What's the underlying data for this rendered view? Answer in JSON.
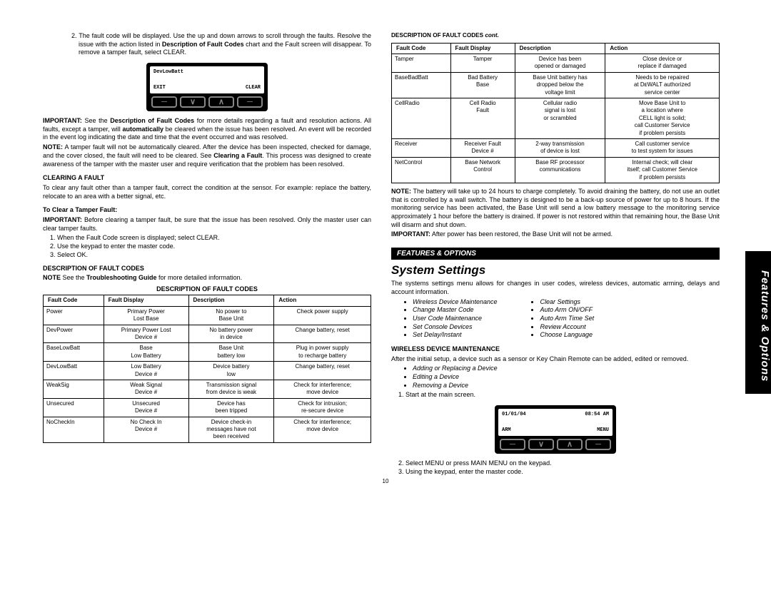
{
  "sideTab": "Features & Options",
  "pageNum": "10",
  "left": {
    "step2": "2. The fault code will be displayed. Use the up and down arrows to scroll through the faults. Resolve the issue with the action listed in ",
    "step2_b": "Description of Fault Codes",
    "step2_c": " chart and the Fault screen will disappear. To remove a tamper fault, select CLEAR.",
    "panel1": {
      "line1": "DevLowBatt",
      "bl": "EXIT",
      "br": "CLEAR",
      "btns": [
        "─",
        "∨",
        "∧",
        "─"
      ]
    },
    "imp1a": "IMPORTANT:",
    "imp1b": " See the ",
    "imp1c": "Description of Fault Codes",
    "imp1d": " for more details regarding a fault and resolution actions. All faults, except a tamper, will ",
    "imp1e": "automatically",
    "imp1f": " be cleared when the issue has been resolved. An event will be recorded in the event log indicating the date and time that the event occurred and was resolved.",
    "note1a": "NOTE:",
    "note1b": " A tamper fault will not be automatically cleared. After the device has been inspected, checked for damage, and the cover closed, the fault will need to be cleared. See ",
    "note1c": "Clearing a Fault",
    "note1d": ". This process was designed to create awareness of the tamper with the master user and require verification that the problem has been resolved.",
    "hdr_clear": "CLEARING A FAULT",
    "clear_txt": "To clear any fault other than a tamper fault, correct the condition at the sensor. For example: replace the battery, relocate to an area with a better signal, etc.",
    "hdr_tamper": "To Clear a Tamper Fault:",
    "imp2a": "IMPORTANT:",
    "imp2b": " Before clearing a tamper fault, be sure that the issue has been resolved. Only the master user can clear tamper faults.",
    "tamper_steps": [
      "When the Fault Code screen is displayed; select CLEAR.",
      "Use the keypad to enter the master code.",
      "Select OK."
    ],
    "hdr_desc": "DESCRIPTION OF FAULT CODES",
    "note2a": "NOTE",
    "note2b": " See the ",
    "note2c": "Troubleshooting Guide",
    "note2d": " for more detailed information.",
    "table_title": "DESCRIPTION OF FAULT CODES",
    "table_headers": [
      "Fault Code",
      "Fault Display",
      "Description",
      "Action"
    ],
    "table_rows": [
      [
        "Power",
        "Primary Power\nLost Base",
        "No power to\nBase Unit",
        "Check power supply"
      ],
      [
        "DevPower",
        "Primary Power Lost\nDevice #",
        "No battery power\nin device",
        "Change battery, reset"
      ],
      [
        "BaseLowBatt",
        "Base\nLow Battery",
        "Base Unit\nbattery low",
        "Plug in power supply\nto recharge battery"
      ],
      [
        "DevLowBatt",
        "Low Battery\nDevice #",
        "Device battery\nlow",
        "Change battery, reset"
      ],
      [
        "WeakSig",
        "Weak Signal\nDevice #",
        "Transmission signal\nfrom device is weak",
        "Check for interference;\nmove device"
      ],
      [
        "Unsecured",
        "Unsecured\nDevice #",
        "Device has\nbeen tripped",
        "Check for intrusion;\nre-secure device"
      ],
      [
        "NoCheckIn",
        "No Check In\nDevice #",
        "Device check-in\nmessages have not\nbeen received",
        "Check for interference;\nmove device"
      ]
    ]
  },
  "right": {
    "table_title": "DESCRIPTION OF FAULT CODES ",
    "table_title_i": "cont.",
    "table_headers": [
      "Fault Code",
      "Fault Display",
      "Description",
      "Action"
    ],
    "table_rows": [
      [
        "Tamper",
        "Tamper",
        "Device has been\nopened or damaged",
        "Close device or\nreplace if damaged"
      ],
      [
        "BaseBadBatt",
        "Bad Battery\nBase",
        "Base Unit battery has\ndropped below the\nvoltage limit",
        "Needs to be repaired\nat DᴇWALT authorized\nservice center"
      ],
      [
        "CellRadio",
        "Cell Radio\nFault",
        "Cellular radio\nsignal is lost\nor scrambled",
        "Move Base Unit to\na location where\nCELL light is solid;\ncall Customer Service\nif problem persists"
      ],
      [
        "Receiver",
        "Receiver Fault\nDevice #",
        "2-way transmission\nof device is lost",
        "Call customer service\nto test system for issues"
      ],
      [
        "NetControl",
        "Base Network\nControl",
        "Base RF processor\ncommunications",
        "Internal check; will clear\nitself; call Customer Service\nif problem persists"
      ]
    ],
    "note3a": "NOTE:",
    "note3b": " The battery will take up to 24 hours to charge completely. To avoid draining the battery, do not use an outlet that is controlled by a wall switch. The battery is designed to be a back-up source of power for up to 8 hours. If the monitoring service has been activated, the Base Unit will send a low battery message to the monitoring service approximately 1 hour before the battery is drained. If power is not restored within that remaining hour, the Base Unit will disarm and shut down.",
    "imp3a": "IMPORTANT:",
    "imp3b": " After power has been restored, the Base Unit will not be armed.",
    "black_bar": "FEATURES & OPTIONS",
    "section_title": "System Settings",
    "ss_intro": "The systems settings menu allows for changes in user codes, wireless devices, automatic arming, delays and account information.",
    "list_left": [
      "Wireless Device Maintenance",
      "Change Master Code",
      "User Code Maintenance",
      "Set Console Devices",
      "Set Delay/Instant"
    ],
    "list_right": [
      "Clear Settings",
      "Auto Arm ON/OFF",
      "Auto Arm Time Set",
      "Review Account",
      "Choose Language"
    ],
    "hdr_wdm": "WIRELESS DEVICE MAINTENANCE",
    "wdm_txt": "After the initial setup, a device such as a sensor or Key Chain Remote can be added, edited or removed.",
    "wdm_list": [
      "Adding or Replacing a Device",
      "Editing a Device",
      "Removing a Device"
    ],
    "wdm_step1": "Start at the main screen.",
    "panel2": {
      "l1": "01/01/04",
      "l2": "08:54 AM",
      "bl": "ARM",
      "br": "MENU",
      "btns": [
        "─",
        "∨",
        "∧",
        "─"
      ]
    },
    "wdm_step2": "Select MENU or press MAIN MENU on the keypad.",
    "wdm_step3": "Using the keypad, enter the master code."
  }
}
